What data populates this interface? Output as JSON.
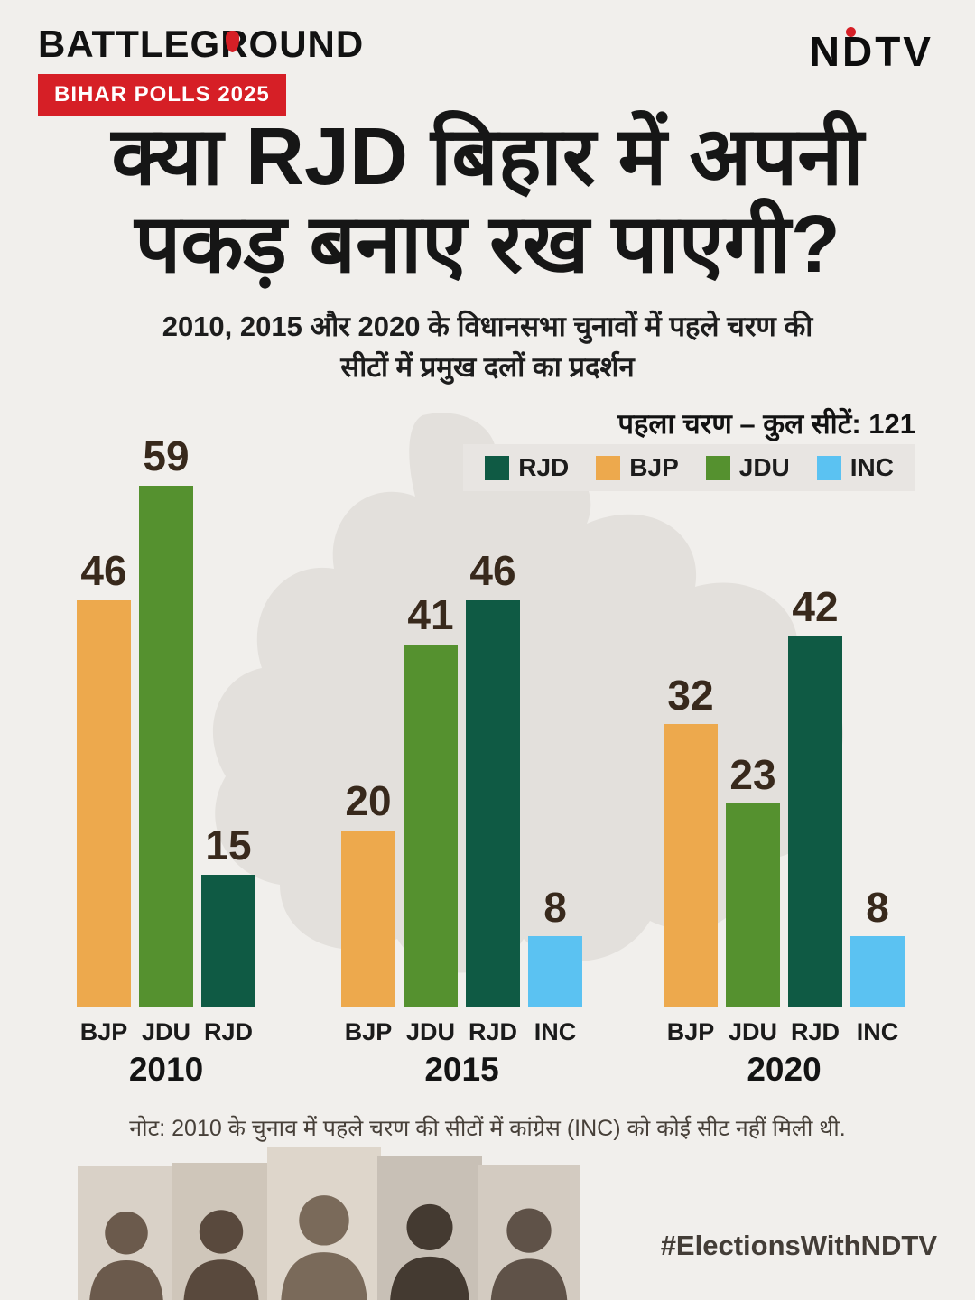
{
  "header": {
    "logo": "BATTLEGROUND",
    "badge": "BIHAR POLLS 2025",
    "ndtv": "NDTV"
  },
  "title": {
    "line1": "क्या RJD बिहार में अपनी",
    "line2": "पकड़ बनाए रख पाएगी?"
  },
  "subtitle": {
    "line1": "2010, 2015 और 2020 के विधानसभा चुनावों में पहले चरण की",
    "line2": "सीटों में प्रमुख दलों का प्रदर्शन"
  },
  "chart_header": "पहला चरण – कुल सीटें: 121",
  "legend": [
    {
      "label": "RJD",
      "color": "#0f5a44"
    },
    {
      "label": "BJP",
      "color": "#eda94d"
    },
    {
      "label": "JDU",
      "color": "#55912f"
    },
    {
      "label": "INC",
      "color": "#5bc2f2"
    }
  ],
  "chart_data": {
    "type": "bar",
    "title": "पहला चरण – कुल सीटें: 121",
    "ylim": [
      0,
      60
    ],
    "colors": {
      "RJD": "#0f5a44",
      "BJP": "#eda94d",
      "JDU": "#55912f",
      "INC": "#5bc2f2"
    },
    "groups": [
      {
        "year": "2010",
        "bars": [
          {
            "party": "BJP",
            "value": 46
          },
          {
            "party": "JDU",
            "value": 59
          },
          {
            "party": "RJD",
            "value": 15
          }
        ]
      },
      {
        "year": "2015",
        "bars": [
          {
            "party": "BJP",
            "value": 20
          },
          {
            "party": "JDU",
            "value": 41
          },
          {
            "party": "RJD",
            "value": 46
          },
          {
            "party": "INC",
            "value": 8
          }
        ]
      },
      {
        "year": "2020",
        "bars": [
          {
            "party": "BJP",
            "value": 32
          },
          {
            "party": "JDU",
            "value": 23
          },
          {
            "party": "RJD",
            "value": 42
          },
          {
            "party": "INC",
            "value": 8
          }
        ]
      }
    ]
  },
  "note": "नोट: 2010 के चुनाव में पहले चरण की सीटों में कांग्रेस (INC) को कोई सीट नहीं मिली थी.",
  "footer": {
    "hashtag": "#ElectionsWithNDTV"
  },
  "photo_colors": [
    {
      "bg": "#d9d1c7",
      "fg": "#6b5a4c"
    },
    {
      "bg": "#cfc6ba",
      "fg": "#59493d"
    },
    {
      "bg": "#ded6cb",
      "fg": "#7a6a5a"
    },
    {
      "bg": "#c8c0b6",
      "fg": "#443a31"
    },
    {
      "bg": "#d3cbc1",
      "fg": "#5f5248"
    }
  ]
}
